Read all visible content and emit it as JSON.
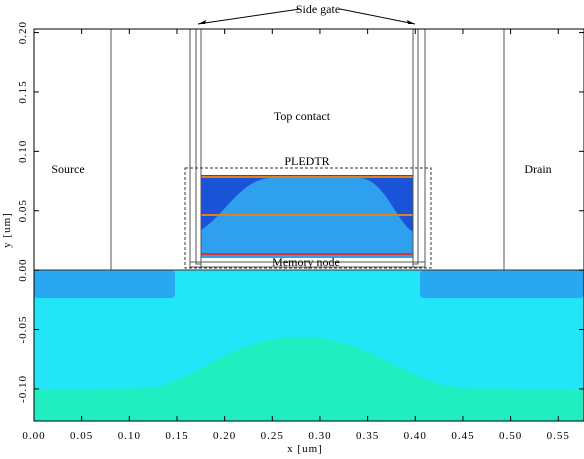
{
  "chart_data": {
    "type": "device",
    "x_label": "x [um]",
    "y_label": "y [um]",
    "annotations": [
      "Side gate",
      "Top contact",
      "PLEDTR",
      "Source",
      "Drain",
      "Memory node"
    ],
    "xlim": [
      0,
      0.577
    ],
    "ylim": [
      -0.127,
      0.203
    ],
    "xticks": [
      {
        "value": 0,
        "label": "0.00"
      },
      {
        "value": 0.05,
        "label": "0.05"
      },
      {
        "value": 0.1,
        "label": "0.10"
      },
      {
        "value": 0.15,
        "label": "0.15"
      },
      {
        "value": 0.2,
        "label": "0.20"
      },
      {
        "value": 0.25,
        "label": "0.25"
      },
      {
        "value": 0.3,
        "label": "0.30"
      },
      {
        "value": 0.35,
        "label": "0.35"
      },
      {
        "value": 0.4,
        "label": "0.40"
      },
      {
        "value": 0.45,
        "label": "0.45"
      },
      {
        "value": 0.5,
        "label": "0.50"
      },
      {
        "value": 0.55,
        "label": "0.55"
      }
    ],
    "yticks": [
      {
        "value": -0.1,
        "label": "-0.10"
      },
      {
        "value": -0.05,
        "label": "-0.05"
      },
      {
        "value": 0,
        "label": "0.00"
      },
      {
        "value": 0.05,
        "label": "0.05"
      },
      {
        "value": 0.1,
        "label": "0.10"
      },
      {
        "value": 0.15,
        "label": "0.15"
      },
      {
        "value": 0.2,
        "label": "0.20"
      }
    ]
  }
}
